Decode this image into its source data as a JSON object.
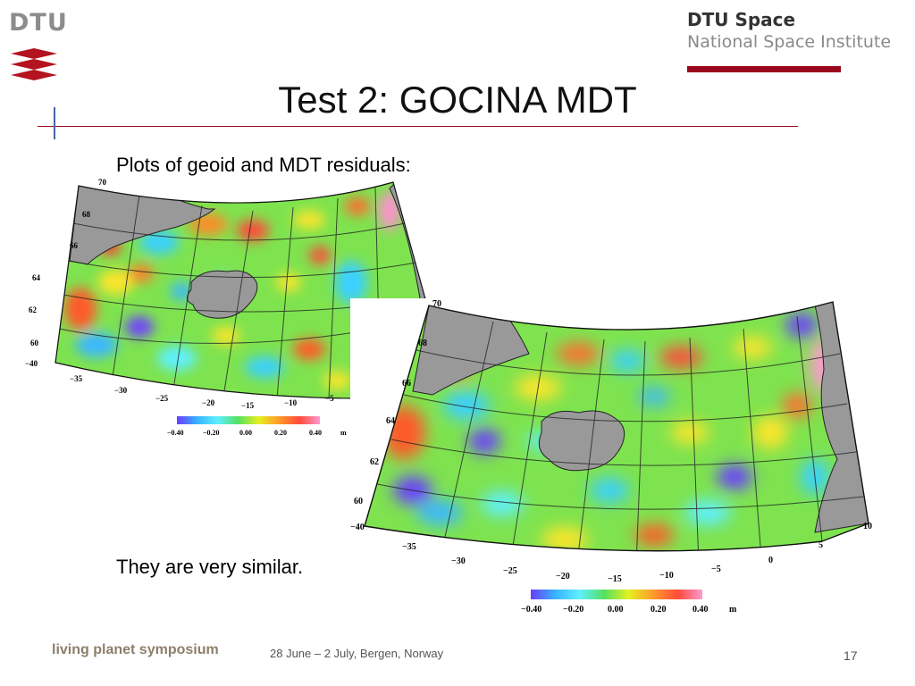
{
  "logo": {
    "text": "DTU"
  },
  "institute": {
    "name": "DTU Space",
    "subtitle": "National Space Institute"
  },
  "slide": {
    "title": "Test 2: GOCINA MDT",
    "intro": "Plots of geoid and MDT residuals:",
    "conclusion": "They are very similar."
  },
  "map_small": {
    "lat_labels": [
      "70",
      "68",
      "66",
      "64",
      "62",
      "60"
    ],
    "lon_labels": [
      "−40",
      "−35",
      "−30",
      "−25",
      "−20",
      "−15",
      "−10",
      "−5"
    ]
  },
  "map_large": {
    "lat_labels": [
      "70",
      "68",
      "66",
      "64",
      "62",
      "60"
    ],
    "lon_labels": [
      "−40",
      "−35",
      "−30",
      "−25",
      "−20",
      "−15",
      "−10",
      "−5",
      "0",
      "5",
      "10"
    ]
  },
  "colorbar": {
    "ticks": [
      "−0.40",
      "−0.20",
      "0.00",
      "0.20",
      "0.40"
    ],
    "unit": "m",
    "colors": [
      "#6a3cff",
      "#37b4ff",
      "#5ff0ff",
      "#55e060",
      "#e5f020",
      "#ff9a2a",
      "#ff4a3a",
      "#ff9ad0"
    ]
  },
  "footer": {
    "event": "living planet symposium",
    "date": "28 June – 2 July, Bergen, Norway",
    "page": "17"
  }
}
